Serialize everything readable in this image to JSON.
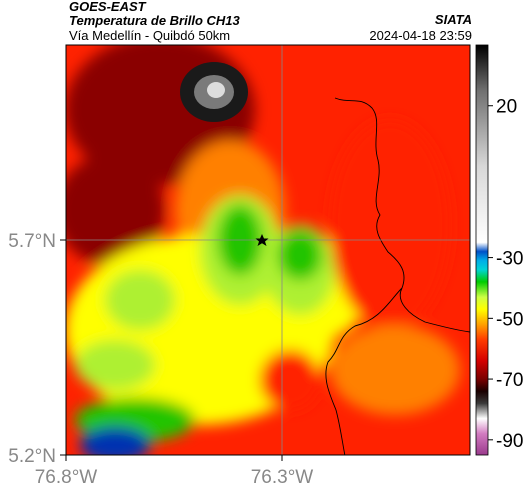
{
  "header": {
    "satellite": "GOES-EAST",
    "product": "Temperatura de Brillo CH13",
    "organization": "SIATA",
    "region": "Vía Medellín - Quibdó 50km",
    "datetime": "2024-04-18 23:59"
  },
  "map": {
    "latitude_ticks": [
      "5.7°N",
      "5.2°N"
    ],
    "longitude_ticks": [
      "76.8°W",
      "76.3°W"
    ],
    "marker_icon": "star-icon"
  },
  "colorbar": {
    "tick_labels": [
      "20",
      "-30",
      "-50",
      "-70",
      "-90"
    ],
    "range": [
      -95,
      40
    ],
    "stops": [
      {
        "value": -95,
        "color": "#9a3a8c"
      },
      {
        "value": -88,
        "color": "#d27bc0"
      },
      {
        "value": -83,
        "color": "#ffffff"
      },
      {
        "value": -78,
        "color": "#3a3a3a"
      },
      {
        "value": -74,
        "color": "#1a0000"
      },
      {
        "value": -70,
        "color": "#7a0000"
      },
      {
        "value": -64,
        "color": "#d40000"
      },
      {
        "value": -57,
        "color": "#ff3c00"
      },
      {
        "value": -52,
        "color": "#ffa000"
      },
      {
        "value": -47,
        "color": "#ffff00"
      },
      {
        "value": -43,
        "color": "#ccff44"
      },
      {
        "value": -38,
        "color": "#00cc00"
      },
      {
        "value": -34,
        "color": "#00d4d4"
      },
      {
        "value": -31,
        "color": "#00aee8"
      },
      {
        "value": -28,
        "color": "#0050c8"
      },
      {
        "value": -25,
        "color": "#ffffff"
      },
      {
        "value": 0,
        "color": "#d8d8d8"
      },
      {
        "value": 25,
        "color": "#707070"
      },
      {
        "value": 40,
        "color": "#000000"
      }
    ]
  },
  "colors": {
    "red": "#ff2200",
    "dark_red": "#8a0000",
    "orange": "#ff8000",
    "yellow": "#ffff00",
    "light_green": "#aef030",
    "green": "#22c400",
    "blue": "#0030b0",
    "border_line": "#000000"
  }
}
